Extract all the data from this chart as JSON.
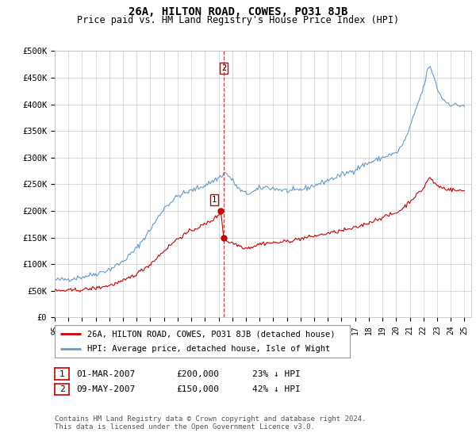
{
  "title": "26A, HILTON ROAD, COWES, PO31 8JB",
  "subtitle": "Price paid vs. HM Land Registry's House Price Index (HPI)",
  "ylabel_ticks": [
    "£0",
    "£50K",
    "£100K",
    "£150K",
    "£200K",
    "£250K",
    "£300K",
    "£350K",
    "£400K",
    "£450K",
    "£500K"
  ],
  "ylim": [
    0,
    500000
  ],
  "xlim_start": 1995.0,
  "xlim_end": 2025.5,
  "red_line_color": "#cc0000",
  "blue_line_color": "#6699cc",
  "sale1": {
    "year": 2007.17,
    "price": 200000,
    "label": "1"
  },
  "sale2": {
    "year": 2007.37,
    "price": 150000,
    "label": "2"
  },
  "dashed_line_x": 2007.37,
  "legend_line1": "26A, HILTON ROAD, COWES, PO31 8JB (detached house)",
  "legend_line2": "HPI: Average price, detached house, Isle of Wight",
  "table_row1": [
    "1",
    "01-MAR-2007",
    "£200,000",
    "23% ↓ HPI"
  ],
  "table_row2": [
    "2",
    "09-MAY-2007",
    "£150,000",
    "42% ↓ HPI"
  ],
  "footer1": "Contains HM Land Registry data © Crown copyright and database right 2024.",
  "footer2": "This data is licensed under the Open Government Licence v3.0.",
  "bg_color": "#ffffff",
  "grid_color": "#cccccc",
  "title_fontsize": 10,
  "subtitle_fontsize": 8.5,
  "hpi_anchors": [
    [
      1995.0,
      70000
    ],
    [
      1996.0,
      72000
    ],
    [
      1997.0,
      76000
    ],
    [
      1998.0,
      82000
    ],
    [
      1999.0,
      90000
    ],
    [
      2000.0,
      105000
    ],
    [
      2001.0,
      130000
    ],
    [
      2002.0,
      165000
    ],
    [
      2003.0,
      205000
    ],
    [
      2004.0,
      228000
    ],
    [
      2005.0,
      238000
    ],
    [
      2006.0,
      248000
    ],
    [
      2007.0,
      262000
    ],
    [
      2007.5,
      272000
    ],
    [
      2008.0,
      258000
    ],
    [
      2008.5,
      240000
    ],
    [
      2009.0,
      232000
    ],
    [
      2009.5,
      235000
    ],
    [
      2010.0,
      242000
    ],
    [
      2010.5,
      245000
    ],
    [
      2011.0,
      242000
    ],
    [
      2011.5,
      240000
    ],
    [
      2012.0,
      238000
    ],
    [
      2012.5,
      237000
    ],
    [
      2013.0,
      240000
    ],
    [
      2013.5,
      243000
    ],
    [
      2014.0,
      248000
    ],
    [
      2014.5,
      252000
    ],
    [
      2015.0,
      258000
    ],
    [
      2015.5,
      262000
    ],
    [
      2016.0,
      268000
    ],
    [
      2016.5,
      272000
    ],
    [
      2017.0,
      278000
    ],
    [
      2017.5,
      285000
    ],
    [
      2018.0,
      290000
    ],
    [
      2018.5,
      295000
    ],
    [
      2019.0,
      300000
    ],
    [
      2019.5,
      305000
    ],
    [
      2020.0,
      308000
    ],
    [
      2020.5,
      325000
    ],
    [
      2021.0,
      355000
    ],
    [
      2021.5,
      395000
    ],
    [
      2022.0,
      430000
    ],
    [
      2022.3,
      465000
    ],
    [
      2022.5,
      470000
    ],
    [
      2022.8,
      450000
    ],
    [
      2023.0,
      430000
    ],
    [
      2023.3,
      415000
    ],
    [
      2023.6,
      405000
    ],
    [
      2024.0,
      400000
    ],
    [
      2024.5,
      398000
    ],
    [
      2025.0,
      398000
    ]
  ],
  "red_anchors": [
    [
      1995.0,
      50000
    ],
    [
      1996.0,
      50500
    ],
    [
      1997.0,
      52000
    ],
    [
      1998.0,
      55000
    ],
    [
      1999.0,
      60000
    ],
    [
      2000.0,
      68000
    ],
    [
      2001.0,
      82000
    ],
    [
      2002.0,
      100000
    ],
    [
      2003.0,
      125000
    ],
    [
      2004.0,
      148000
    ],
    [
      2005.0,
      163000
    ],
    [
      2006.0,
      175000
    ],
    [
      2006.5,
      182000
    ],
    [
      2007.0,
      192000
    ],
    [
      2007.17,
      200000
    ],
    [
      2007.37,
      150000
    ],
    [
      2007.6,
      143000
    ],
    [
      2008.0,
      140000
    ],
    [
      2008.5,
      135000
    ],
    [
      2009.0,
      130000
    ],
    [
      2009.5,
      133000
    ],
    [
      2010.0,
      138000
    ],
    [
      2010.5,
      140000
    ],
    [
      2011.0,
      140000
    ],
    [
      2011.5,
      141000
    ],
    [
      2012.0,
      143000
    ],
    [
      2012.5,
      145000
    ],
    [
      2013.0,
      148000
    ],
    [
      2013.5,
      150000
    ],
    [
      2014.0,
      153000
    ],
    [
      2014.5,
      155000
    ],
    [
      2015.0,
      158000
    ],
    [
      2015.5,
      160000
    ],
    [
      2016.0,
      163000
    ],
    [
      2016.5,
      165000
    ],
    [
      2017.0,
      168000
    ],
    [
      2017.5,
      173000
    ],
    [
      2018.0,
      178000
    ],
    [
      2018.5,
      183000
    ],
    [
      2019.0,
      188000
    ],
    [
      2019.5,
      192000
    ],
    [
      2020.0,
      196000
    ],
    [
      2020.5,
      205000
    ],
    [
      2021.0,
      218000
    ],
    [
      2021.5,
      230000
    ],
    [
      2022.0,
      242000
    ],
    [
      2022.3,
      258000
    ],
    [
      2022.5,
      262000
    ],
    [
      2022.8,
      252000
    ],
    [
      2023.0,
      248000
    ],
    [
      2023.3,
      244000
    ],
    [
      2023.6,
      242000
    ],
    [
      2024.0,
      240000
    ],
    [
      2024.5,
      238000
    ],
    [
      2025.0,
      238000
    ]
  ]
}
